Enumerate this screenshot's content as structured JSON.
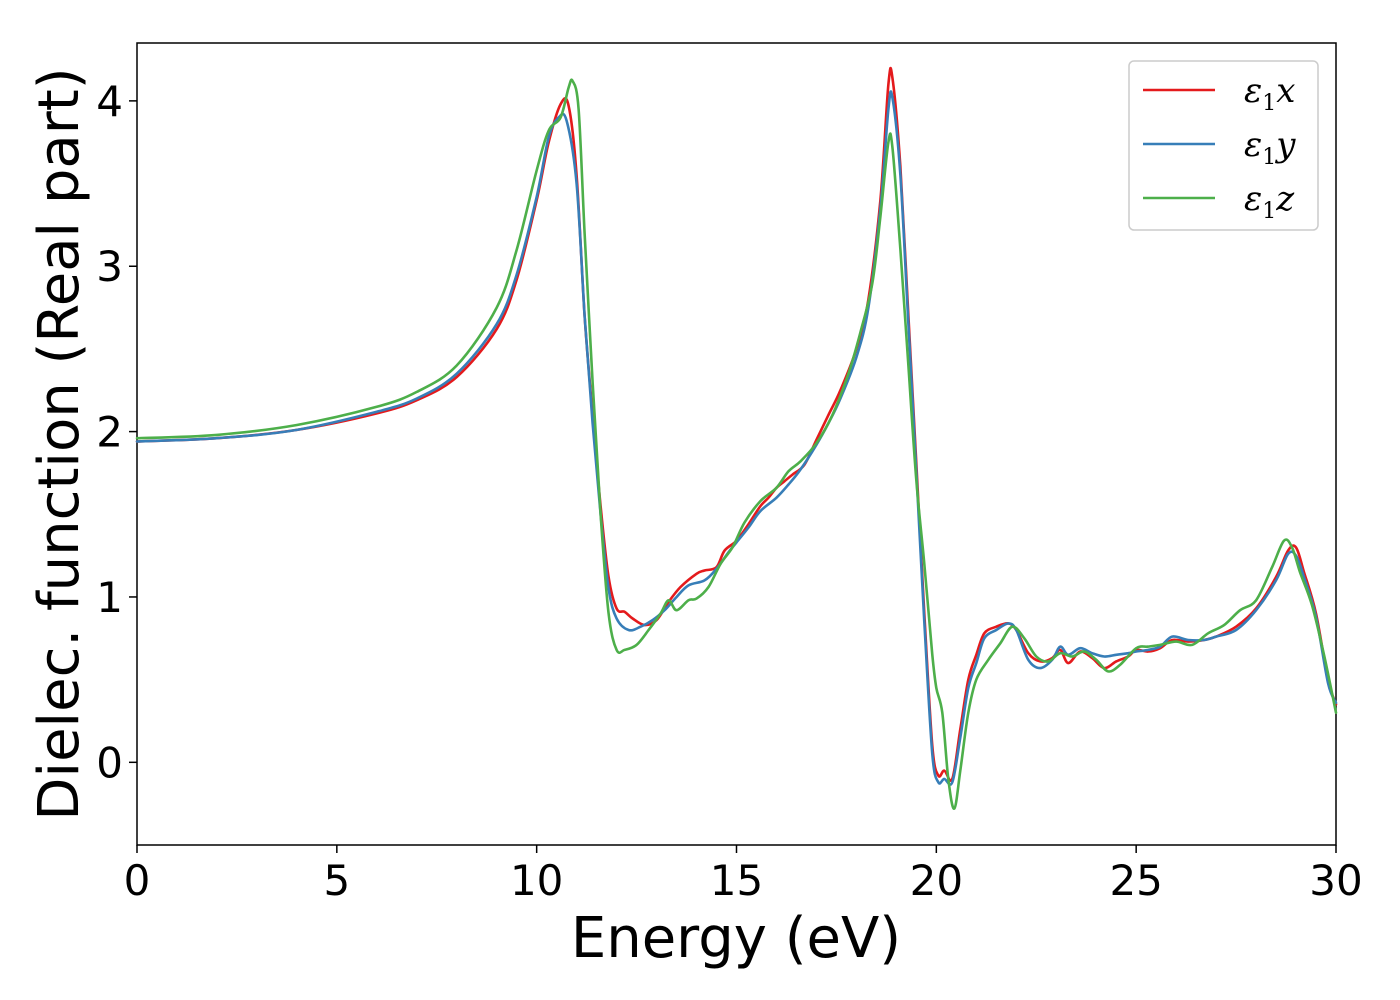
{
  "chart_data": {
    "type": "line",
    "xlabel": "Energy (eV)",
    "ylabel": "Dielec. function (Real part)",
    "xlim": [
      0,
      30
    ],
    "ylim": [
      -0.5,
      4.35
    ],
    "xticks": [
      "0",
      "5",
      "10",
      "15",
      "20",
      "25",
      "30"
    ],
    "yticks": [
      "0",
      "1",
      "2",
      "3",
      "4"
    ],
    "grid": false,
    "legend_position": "top-right",
    "series": [
      {
        "name": "ε₁x",
        "legend": {
          "base": "ε",
          "sub": "1",
          "suffix": "x"
        },
        "color": "#e41a1c",
        "points": [
          [
            0,
            1.94
          ],
          [
            2,
            1.96
          ],
          [
            4,
            2.01
          ],
          [
            6,
            2.11
          ],
          [
            7,
            2.19
          ],
          [
            8,
            2.33
          ],
          [
            9,
            2.62
          ],
          [
            9.5,
            2.92
          ],
          [
            10,
            3.4
          ],
          [
            10.3,
            3.75
          ],
          [
            10.6,
            3.98
          ],
          [
            10.8,
            3.97
          ],
          [
            11,
            3.55
          ],
          [
            11.2,
            2.7
          ],
          [
            11.4,
            2.1
          ],
          [
            11.6,
            1.55
          ],
          [
            11.8,
            1.12
          ],
          [
            12,
            0.93
          ],
          [
            12.2,
            0.91
          ],
          [
            12.4,
            0.87
          ],
          [
            12.7,
            0.83
          ],
          [
            13,
            0.86
          ],
          [
            13.3,
            0.97
          ],
          [
            13.6,
            1.06
          ],
          [
            14,
            1.14
          ],
          [
            14.2,
            1.16
          ],
          [
            14.5,
            1.18
          ],
          [
            14.7,
            1.28
          ],
          [
            15,
            1.34
          ],
          [
            15.3,
            1.44
          ],
          [
            15.6,
            1.55
          ],
          [
            15.8,
            1.6
          ],
          [
            16,
            1.66
          ],
          [
            16.2,
            1.7
          ],
          [
            16.4,
            1.74
          ],
          [
            16.7,
            1.8
          ],
          [
            17,
            1.95
          ],
          [
            17.3,
            2.1
          ],
          [
            17.6,
            2.25
          ],
          [
            18,
            2.5
          ],
          [
            18.3,
            2.8
          ],
          [
            18.6,
            3.4
          ],
          [
            18.8,
            4.1
          ],
          [
            18.9,
            4.14
          ],
          [
            19.1,
            3.6
          ],
          [
            19.3,
            2.7
          ],
          [
            19.5,
            1.8
          ],
          [
            19.7,
            0.9
          ],
          [
            19.9,
            0.1
          ],
          [
            20.05,
            -0.08
          ],
          [
            20.2,
            -0.05
          ],
          [
            20.4,
            -0.1
          ],
          [
            20.6,
            0.2
          ],
          [
            20.8,
            0.5
          ],
          [
            21,
            0.65
          ],
          [
            21.2,
            0.78
          ],
          [
            21.5,
            0.82
          ],
          [
            21.8,
            0.84
          ],
          [
            22,
            0.8
          ],
          [
            22.3,
            0.66
          ],
          [
            22.6,
            0.61
          ],
          [
            22.9,
            0.63
          ],
          [
            23.1,
            0.68
          ],
          [
            23.3,
            0.6
          ],
          [
            23.6,
            0.67
          ],
          [
            23.9,
            0.63
          ],
          [
            24.2,
            0.57
          ],
          [
            24.5,
            0.61
          ],
          [
            24.8,
            0.64
          ],
          [
            25,
            0.68
          ],
          [
            25.3,
            0.67
          ],
          [
            25.6,
            0.69
          ],
          [
            25.9,
            0.74
          ],
          [
            26.3,
            0.73
          ],
          [
            26.7,
            0.74
          ],
          [
            27,
            0.76
          ],
          [
            27.5,
            0.82
          ],
          [
            28,
            0.93
          ],
          [
            28.5,
            1.12
          ],
          [
            28.8,
            1.28
          ],
          [
            29,
            1.3
          ],
          [
            29.2,
            1.15
          ],
          [
            29.5,
            0.9
          ],
          [
            29.8,
            0.5
          ],
          [
            30,
            0.35
          ]
        ]
      },
      {
        "name": "ε₁y",
        "legend": {
          "base": "ε",
          "sub": "1",
          "suffix": "y"
        },
        "color": "#377eb8",
        "points": [
          [
            0,
            1.94
          ],
          [
            2,
            1.96
          ],
          [
            4,
            2.01
          ],
          [
            6,
            2.12
          ],
          [
            7,
            2.2
          ],
          [
            8,
            2.35
          ],
          [
            9,
            2.65
          ],
          [
            9.5,
            2.95
          ],
          [
            10,
            3.42
          ],
          [
            10.3,
            3.78
          ],
          [
            10.55,
            3.9
          ],
          [
            10.75,
            3.88
          ],
          [
            11,
            3.5
          ],
          [
            11.2,
            2.7
          ],
          [
            11.4,
            2.05
          ],
          [
            11.6,
            1.5
          ],
          [
            11.8,
            1.05
          ],
          [
            12,
            0.87
          ],
          [
            12.3,
            0.8
          ],
          [
            12.6,
            0.82
          ],
          [
            12.9,
            0.86
          ],
          [
            13.2,
            0.92
          ],
          [
            13.5,
            1.0
          ],
          [
            13.8,
            1.07
          ],
          [
            14.2,
            1.1
          ],
          [
            14.5,
            1.17
          ],
          [
            14.8,
            1.27
          ],
          [
            15,
            1.33
          ],
          [
            15.3,
            1.42
          ],
          [
            15.6,
            1.52
          ],
          [
            16,
            1.6
          ],
          [
            16.3,
            1.68
          ],
          [
            16.6,
            1.77
          ],
          [
            17,
            1.92
          ],
          [
            17.3,
            2.05
          ],
          [
            17.6,
            2.2
          ],
          [
            18,
            2.45
          ],
          [
            18.3,
            2.75
          ],
          [
            18.6,
            3.35
          ],
          [
            18.8,
            3.95
          ],
          [
            18.9,
            4.02
          ],
          [
            19.1,
            3.55
          ],
          [
            19.3,
            2.65
          ],
          [
            19.5,
            1.75
          ],
          [
            19.7,
            0.85
          ],
          [
            19.9,
            0.05
          ],
          [
            20.05,
            -0.12
          ],
          [
            20.2,
            -0.1
          ],
          [
            20.4,
            -0.12
          ],
          [
            20.6,
            0.15
          ],
          [
            20.8,
            0.45
          ],
          [
            21,
            0.6
          ],
          [
            21.2,
            0.75
          ],
          [
            21.5,
            0.8
          ],
          [
            21.8,
            0.84
          ],
          [
            22,
            0.8
          ],
          [
            22.3,
            0.62
          ],
          [
            22.6,
            0.57
          ],
          [
            22.9,
            0.62
          ],
          [
            23.1,
            0.7
          ],
          [
            23.3,
            0.65
          ],
          [
            23.6,
            0.69
          ],
          [
            23.9,
            0.66
          ],
          [
            24.2,
            0.64
          ],
          [
            24.5,
            0.65
          ],
          [
            24.8,
            0.66
          ],
          [
            25,
            0.67
          ],
          [
            25.3,
            0.68
          ],
          [
            25.6,
            0.7
          ],
          [
            25.9,
            0.76
          ],
          [
            26.3,
            0.74
          ],
          [
            26.7,
            0.74
          ],
          [
            27,
            0.76
          ],
          [
            27.5,
            0.8
          ],
          [
            28,
            0.92
          ],
          [
            28.5,
            1.1
          ],
          [
            28.8,
            1.26
          ],
          [
            29,
            1.25
          ],
          [
            29.2,
            1.12
          ],
          [
            29.5,
            0.88
          ],
          [
            29.8,
            0.48
          ],
          [
            30,
            0.36
          ]
        ]
      },
      {
        "name": "ε₁z",
        "legend": {
          "base": "ε",
          "sub": "1",
          "suffix": "z"
        },
        "color": "#4daf4a",
        "points": [
          [
            0,
            1.96
          ],
          [
            2,
            1.98
          ],
          [
            4,
            2.04
          ],
          [
            6,
            2.15
          ],
          [
            7,
            2.24
          ],
          [
            8,
            2.4
          ],
          [
            9,
            2.75
          ],
          [
            9.5,
            3.1
          ],
          [
            10,
            3.58
          ],
          [
            10.3,
            3.82
          ],
          [
            10.6,
            3.9
          ],
          [
            10.8,
            4.08
          ],
          [
            10.9,
            4.12
          ],
          [
            11.05,
            3.95
          ],
          [
            11.2,
            3.2
          ],
          [
            11.4,
            2.3
          ],
          [
            11.6,
            1.5
          ],
          [
            11.8,
            0.9
          ],
          [
            12,
            0.68
          ],
          [
            12.2,
            0.68
          ],
          [
            12.5,
            0.71
          ],
          [
            12.8,
            0.8
          ],
          [
            13.1,
            0.9
          ],
          [
            13.3,
            0.98
          ],
          [
            13.5,
            0.92
          ],
          [
            13.8,
            0.98
          ],
          [
            14,
            0.99
          ],
          [
            14.3,
            1.06
          ],
          [
            14.6,
            1.2
          ],
          [
            14.9,
            1.3
          ],
          [
            15.2,
            1.45
          ],
          [
            15.6,
            1.58
          ],
          [
            16,
            1.66
          ],
          [
            16.3,
            1.76
          ],
          [
            16.6,
            1.82
          ],
          [
            17,
            1.93
          ],
          [
            17.4,
            2.1
          ],
          [
            17.8,
            2.35
          ],
          [
            18.1,
            2.6
          ],
          [
            18.4,
            2.9
          ],
          [
            18.6,
            3.3
          ],
          [
            18.8,
            3.75
          ],
          [
            18.9,
            3.72
          ],
          [
            19.1,
            3.1
          ],
          [
            19.3,
            2.4
          ],
          [
            19.5,
            1.7
          ],
          [
            19.7,
            1.2
          ],
          [
            19.9,
            0.65
          ],
          [
            20,
            0.45
          ],
          [
            20.15,
            0.3
          ],
          [
            20.3,
            -0.1
          ],
          [
            20.45,
            -0.28
          ],
          [
            20.6,
            -0.05
          ],
          [
            20.8,
            0.3
          ],
          [
            21,
            0.5
          ],
          [
            21.3,
            0.62
          ],
          [
            21.6,
            0.72
          ],
          [
            21.9,
            0.82
          ],
          [
            22.2,
            0.75
          ],
          [
            22.5,
            0.64
          ],
          [
            22.8,
            0.61
          ],
          [
            23.1,
            0.66
          ],
          [
            23.4,
            0.64
          ],
          [
            23.7,
            0.67
          ],
          [
            24,
            0.62
          ],
          [
            24.3,
            0.55
          ],
          [
            24.6,
            0.59
          ],
          [
            25,
            0.69
          ],
          [
            25.3,
            0.7
          ],
          [
            25.6,
            0.71
          ],
          [
            26,
            0.73
          ],
          [
            26.4,
            0.71
          ],
          [
            26.8,
            0.78
          ],
          [
            27.2,
            0.83
          ],
          [
            27.6,
            0.92
          ],
          [
            28,
            0.98
          ],
          [
            28.4,
            1.18
          ],
          [
            28.7,
            1.34
          ],
          [
            28.9,
            1.3
          ],
          [
            29.1,
            1.15
          ],
          [
            29.4,
            0.95
          ],
          [
            29.7,
            0.65
          ],
          [
            30,
            0.3
          ]
        ]
      }
    ]
  }
}
